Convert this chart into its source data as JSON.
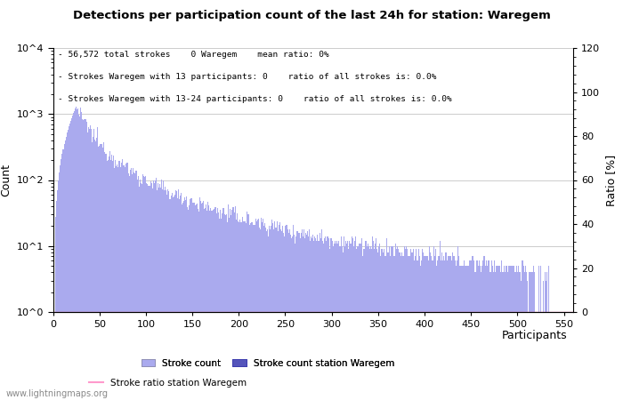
{
  "title": "Detections per participation count of the last 24h for station: Waregem",
  "xlabel": "Participants",
  "ylabel_left": "Count",
  "ylabel_right": "Ratio [%]",
  "annotation_lines": [
    "56,572 total strokes    0 Waregem    mean ratio: 0%",
    "Strokes Waregem with 13 participants: 0    ratio of all strokes is: 0.0%",
    "Strokes Waregem with 13-24 participants: 0    ratio of all strokes is: 0.0%"
  ],
  "bar_color_light": "#aaaaee",
  "bar_color_dark": "#5555bb",
  "ratio_line_color": "#ff99cc",
  "background_color": "#ffffff",
  "grid_color": "#cccccc",
  "watermark": "www.lightningmaps.org",
  "xlim": [
    0,
    560
  ],
  "ylim_log": [
    1,
    10000
  ],
  "ylim_right": [
    0,
    120
  ],
  "yticks_right": [
    0,
    20,
    40,
    60,
    80,
    100,
    120
  ],
  "xticks": [
    0,
    50,
    100,
    150,
    200,
    250,
    300,
    350,
    400,
    450,
    500,
    550
  ]
}
